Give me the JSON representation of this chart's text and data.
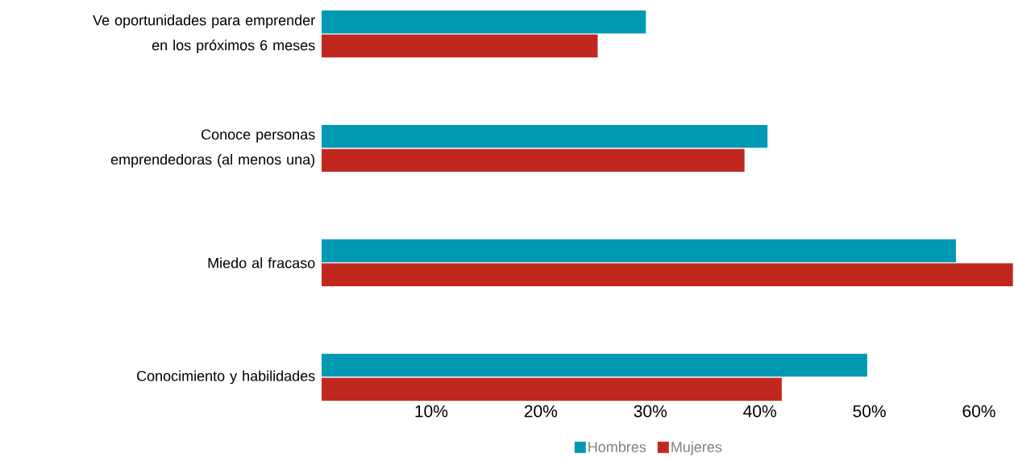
{
  "chart_data": {
    "type": "bar",
    "orientation": "horizontal",
    "categories": [
      "Ve oportunidades para emprender en los próximos 6 meses",
      "Conoce personas emprendedoras (al menos una)",
      "Miedo al fracaso",
      "Conocimiento y habilidades"
    ],
    "series": [
      {
        "name": "Hombres",
        "color": "#0099b4",
        "values": [
          29.6,
          40.7,
          57.9,
          49.8
        ]
      },
      {
        "name": "Mujeres",
        "color": "#c0281f",
        "values": [
          25.2,
          38.6,
          63.1,
          42.0
        ]
      }
    ],
    "xlim": [
      0,
      63.2
    ],
    "xticks": [
      {
        "value": 10,
        "label": "10%"
      },
      {
        "value": 20,
        "label": "20%"
      },
      {
        "value": 30,
        "label": "30%"
      },
      {
        "value": 40,
        "label": "40%"
      },
      {
        "value": 50,
        "label": "50%"
      },
      {
        "value": 60,
        "label": "60%"
      }
    ],
    "legend": "bottom"
  }
}
